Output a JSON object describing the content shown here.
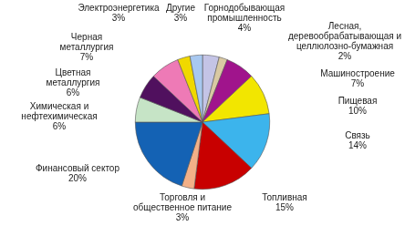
{
  "chart_data": {
    "type": "pie",
    "categories": [
      "Горнодобывающая промышленность",
      "Лесная, деревообрабатывающая и целлюлозно-бумажная",
      "Машиностроение",
      "Пищевая",
      "Связь",
      "Топливная",
      "Торговля и общественное питание",
      "Финансовый сектор",
      "Химическая и нефтехимическая",
      "Цветная металлургия",
      "Черная металлургия",
      "Электроэнергетика",
      "Другие"
    ],
    "values": [
      4,
      2,
      7,
      10,
      14,
      15,
      3,
      20,
      6,
      6,
      7,
      3,
      3
    ],
    "value_labels": [
      "4%",
      "2%",
      "7%",
      "10%",
      "14%",
      "15%",
      "3%",
      "20%",
      "6%",
      "6%",
      "7%",
      "3%",
      "3%"
    ],
    "colors": [
      "#c4c4e6",
      "#d9c9a3",
      "#a0148c",
      "#f2e600",
      "#3cb4ec",
      "#c80000",
      "#f2b088",
      "#1462b4",
      "#c6e4c6",
      "#50105e",
      "#ee7ab6",
      "#f0d800",
      "#a8c8f0"
    ],
    "data_labels": true
  }
}
